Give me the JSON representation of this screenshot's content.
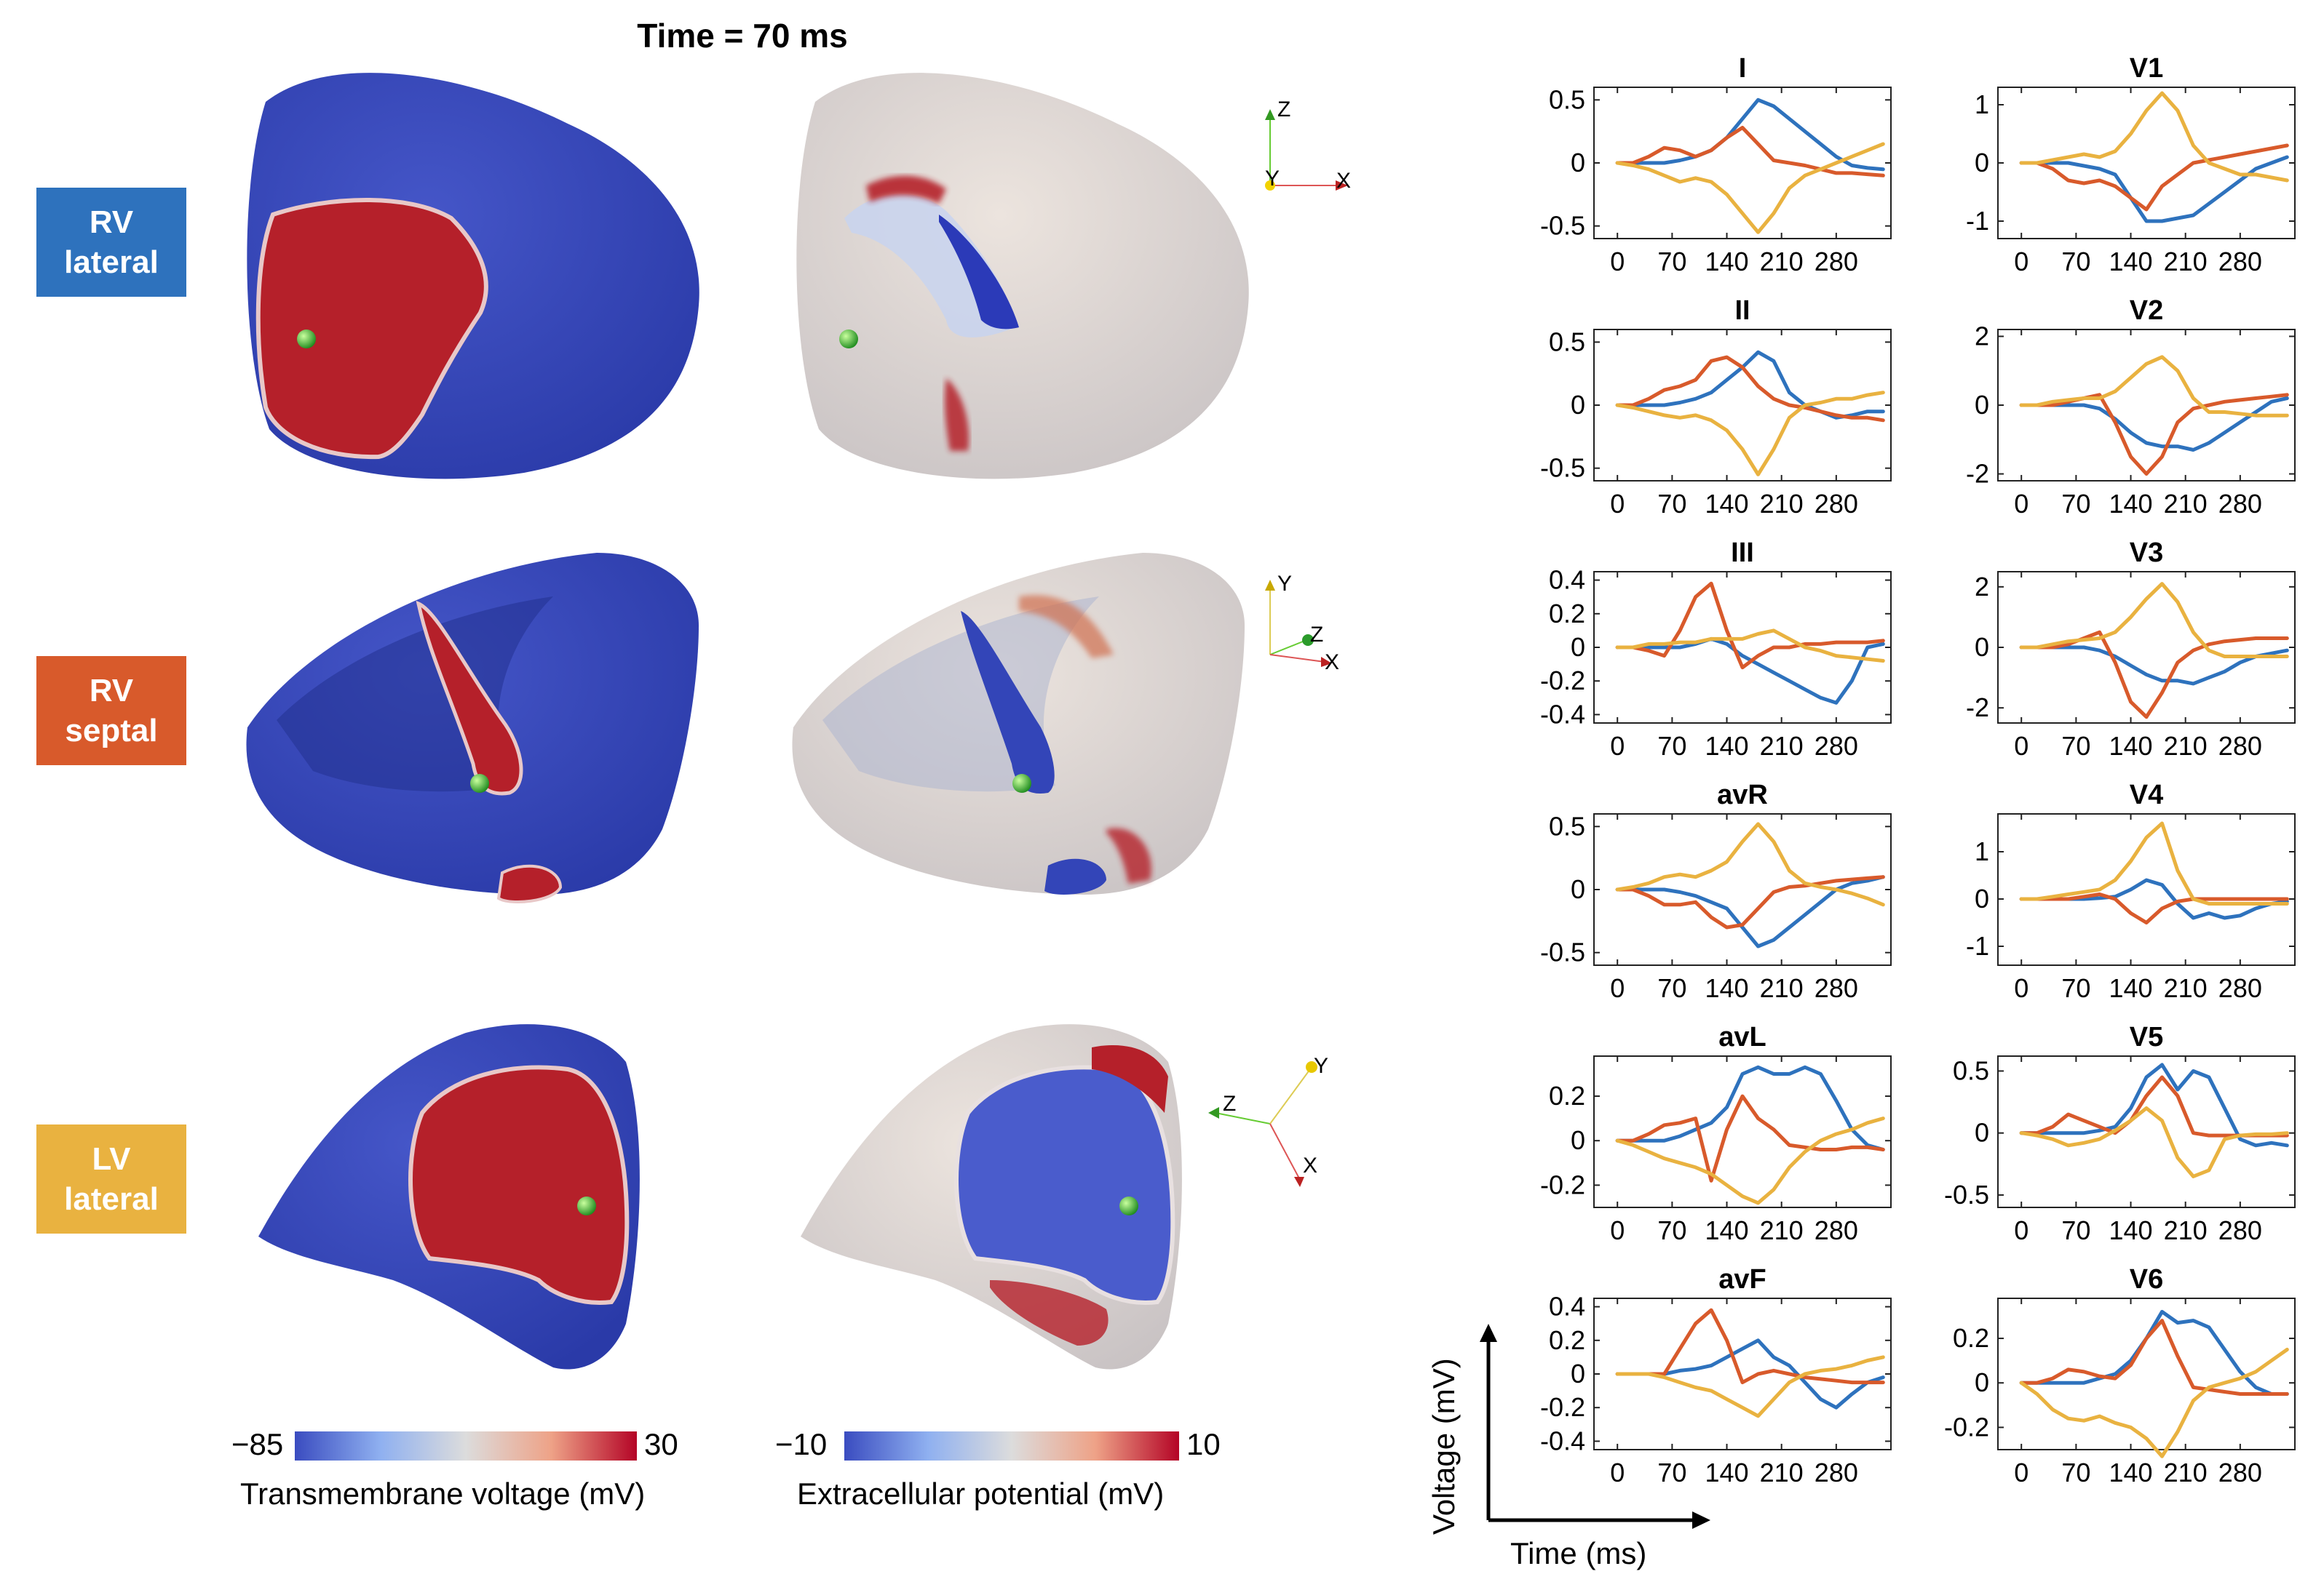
{
  "figure": {
    "time_label": "Time = 70 ms",
    "cases": [
      {
        "line1": "RV",
        "line2": "lateral",
        "color": "#2E72BD"
      },
      {
        "line1": "RV",
        "line2": "septal",
        "color": "#D85A2B"
      },
      {
        "line1": "LV",
        "line2": "lateral",
        "color": "#E9B240"
      }
    ],
    "colorbars": [
      {
        "min_label": "−85",
        "max_label": "30",
        "title": "Transmembrane voltage (mV)"
      },
      {
        "min_label": "−10",
        "max_label": "10",
        "title": "Extracellular potential (mV)"
      }
    ],
    "axes_triads": [
      {
        "labels": [
          "Z",
          "Y",
          "X"
        ]
      },
      {
        "labels": [
          "Y",
          "Z",
          "X"
        ]
      },
      {
        "labels": [
          "Z",
          "Y",
          "X"
        ]
      }
    ],
    "guide": {
      "ylabel": "Voltage (mV)",
      "xlabel": "Time (ms)"
    }
  },
  "chart_data": {
    "type": "line",
    "x_ticks": [
      0,
      70,
      140,
      210,
      280
    ],
    "xlim": [
      -30,
      350
    ],
    "series_colors": [
      "#2E72BD",
      "#D85A2B",
      "#E9B240"
    ],
    "x": [
      0,
      20,
      40,
      60,
      80,
      100,
      120,
      140,
      160,
      180,
      200,
      220,
      240,
      260,
      280,
      300,
      320,
      340
    ],
    "leads": [
      {
        "title": "I",
        "ylim": [
          -0.6,
          0.6
        ],
        "yticks": [
          -0.5,
          0,
          0.5
        ],
        "ytick_labels": [
          "-0.5",
          "0",
          "0.5"
        ],
        "series": [
          [
            0,
            0,
            0,
            0,
            0.02,
            0.05,
            0.1,
            0.2,
            0.35,
            0.5,
            0.45,
            0.35,
            0.25,
            0.15,
            0.05,
            -0.02,
            -0.04,
            -0.05
          ],
          [
            0,
            0,
            0.05,
            0.12,
            0.1,
            0.05,
            0.1,
            0.2,
            0.28,
            0.15,
            0.02,
            0,
            -0.02,
            -0.05,
            -0.08,
            -0.08,
            -0.09,
            -0.1
          ],
          [
            0,
            -0.02,
            -0.05,
            -0.1,
            -0.15,
            -0.12,
            -0.15,
            -0.25,
            -0.4,
            -0.55,
            -0.4,
            -0.2,
            -0.1,
            -0.05,
            0,
            0.05,
            0.1,
            0.15
          ]
        ]
      },
      {
        "title": "V1",
        "ylim": [
          -1.3,
          1.3
        ],
        "yticks": [
          -1,
          0,
          1
        ],
        "ytick_labels": [
          "-1",
          "0",
          "1"
        ],
        "series": [
          [
            0,
            0,
            0,
            0,
            -0.05,
            -0.1,
            -0.2,
            -0.6,
            -1.0,
            -1.0,
            -0.95,
            -0.9,
            -0.7,
            -0.5,
            -0.3,
            -0.1,
            0,
            0.1
          ],
          [
            0,
            0,
            -0.1,
            -0.3,
            -0.35,
            -0.3,
            -0.4,
            -0.6,
            -0.8,
            -0.4,
            -0.2,
            0,
            0.05,
            0.1,
            0.15,
            0.2,
            0.25,
            0.3
          ],
          [
            0,
            0,
            0.05,
            0.1,
            0.15,
            0.1,
            0.2,
            0.5,
            0.9,
            1.2,
            0.9,
            0.3,
            0,
            -0.1,
            -0.2,
            -0.2,
            -0.25,
            -0.3
          ]
        ]
      },
      {
        "title": "II",
        "ylim": [
          -0.6,
          0.6
        ],
        "yticks": [
          -0.5,
          0,
          0.5
        ],
        "ytick_labels": [
          "-0.5",
          "0",
          "0.5"
        ],
        "series": [
          [
            0,
            0,
            0,
            0,
            0.02,
            0.05,
            0.1,
            0.2,
            0.3,
            0.42,
            0.35,
            0.1,
            0,
            -0.05,
            -0.1,
            -0.08,
            -0.05,
            -0.05
          ],
          [
            0,
            0,
            0.05,
            0.12,
            0.15,
            0.2,
            0.35,
            0.38,
            0.3,
            0.15,
            0.05,
            0,
            -0.02,
            -0.05,
            -0.08,
            -0.1,
            -0.1,
            -0.12
          ],
          [
            0,
            -0.02,
            -0.05,
            -0.08,
            -0.1,
            -0.08,
            -0.12,
            -0.2,
            -0.35,
            -0.55,
            -0.35,
            -0.1,
            0,
            0.02,
            0.05,
            0.05,
            0.08,
            0.1
          ]
        ]
      },
      {
        "title": "V2",
        "ylim": [
          -2.2,
          2.2
        ],
        "yticks": [
          -2,
          0,
          2
        ],
        "ytick_labels": [
          "-2",
          "0",
          "2"
        ],
        "series": [
          [
            0,
            0,
            0,
            0,
            0,
            -0.1,
            -0.4,
            -0.8,
            -1.1,
            -1.2,
            -1.2,
            -1.3,
            -1.1,
            -0.8,
            -0.5,
            -0.2,
            0.1,
            0.2
          ],
          [
            0,
            0,
            0,
            0.1,
            0.2,
            0.3,
            -0.5,
            -1.5,
            -2.0,
            -1.5,
            -0.5,
            -0.1,
            0,
            0.1,
            0.15,
            0.2,
            0.25,
            0.3
          ],
          [
            0,
            0,
            0.1,
            0.15,
            0.2,
            0.2,
            0.4,
            0.8,
            1.2,
            1.4,
            1.0,
            0.2,
            -0.2,
            -0.2,
            -0.25,
            -0.3,
            -0.3,
            -0.3
          ]
        ]
      },
      {
        "title": "III",
        "ylim": [
          -0.45,
          0.45
        ],
        "yticks": [
          -0.4,
          -0.2,
          0,
          0.2,
          0.4
        ],
        "ytick_labels": [
          "-0.4",
          "-0.2",
          "0",
          "0.2",
          "0.4"
        ],
        "series": [
          [
            0,
            0,
            0,
            0,
            0,
            0.02,
            0.05,
            0.02,
            -0.05,
            -0.1,
            -0.15,
            -0.2,
            -0.25,
            -0.3,
            -0.33,
            -0.2,
            0,
            0.02
          ],
          [
            0,
            0,
            -0.02,
            -0.05,
            0.1,
            0.3,
            0.38,
            0.1,
            -0.12,
            -0.05,
            0,
            0,
            0.02,
            0.02,
            0.03,
            0.03,
            0.03,
            0.04
          ],
          [
            0,
            0,
            0.02,
            0.02,
            0.03,
            0.03,
            0.05,
            0.05,
            0.05,
            0.08,
            0.1,
            0.05,
            0,
            -0.02,
            -0.05,
            -0.06,
            -0.07,
            -0.08
          ]
        ]
      },
      {
        "title": "V3",
        "ylim": [
          -2.5,
          2.5
        ],
        "yticks": [
          -2,
          0,
          2
        ],
        "ytick_labels": [
          "-2",
          "0",
          "2"
        ],
        "series": [
          [
            0,
            0,
            0,
            0,
            0,
            -0.1,
            -0.3,
            -0.6,
            -0.9,
            -1.1,
            -1.1,
            -1.2,
            -1.0,
            -0.8,
            -0.5,
            -0.3,
            -0.2,
            -0.1
          ],
          [
            0,
            0,
            0,
            0.1,
            0.3,
            0.5,
            -0.5,
            -1.8,
            -2.3,
            -1.5,
            -0.5,
            -0.1,
            0.1,
            0.2,
            0.25,
            0.3,
            0.3,
            0.3
          ],
          [
            0,
            0,
            0.1,
            0.2,
            0.25,
            0.3,
            0.5,
            1.0,
            1.6,
            2.1,
            1.5,
            0.5,
            -0.1,
            -0.3,
            -0.3,
            -0.3,
            -0.3,
            -0.3
          ]
        ]
      },
      {
        "title": "avR",
        "ylim": [
          -0.6,
          0.6
        ],
        "yticks": [
          -0.5,
          0,
          0.5
        ],
        "ytick_labels": [
          "-0.5",
          "0",
          "0.5"
        ],
        "series": [
          [
            0,
            0,
            0,
            0,
            -0.02,
            -0.05,
            -0.1,
            -0.15,
            -0.3,
            -0.45,
            -0.4,
            -0.3,
            -0.2,
            -0.1,
            0,
            0.05,
            0.07,
            0.1
          ],
          [
            0,
            0,
            -0.05,
            -0.12,
            -0.12,
            -0.1,
            -0.22,
            -0.3,
            -0.28,
            -0.15,
            -0.02,
            0.02,
            0.03,
            0.05,
            0.07,
            0.08,
            0.09,
            0.1
          ],
          [
            0,
            0.02,
            0.05,
            0.1,
            0.12,
            0.1,
            0.15,
            0.22,
            0.38,
            0.52,
            0.38,
            0.15,
            0.05,
            0.02,
            0,
            -0.03,
            -0.07,
            -0.12
          ]
        ]
      },
      {
        "title": "V4",
        "ylim": [
          -1.4,
          1.8
        ],
        "yticks": [
          -1,
          0,
          1
        ],
        "ytick_labels": [
          "-1",
          "0",
          "1"
        ],
        "series": [
          [
            0,
            0,
            0,
            0,
            0,
            0.02,
            0.05,
            0.2,
            0.4,
            0.3,
            -0.1,
            -0.4,
            -0.3,
            -0.4,
            -0.35,
            -0.2,
            -0.1,
            -0.05
          ],
          [
            0,
            0,
            0,
            0,
            0.05,
            0.1,
            0,
            -0.3,
            -0.5,
            -0.2,
            -0.05,
            0,
            0,
            0,
            0,
            0,
            0,
            0
          ],
          [
            0,
            0,
            0.05,
            0.1,
            0.15,
            0.2,
            0.4,
            0.8,
            1.3,
            1.6,
            0.6,
            0,
            -0.1,
            -0.1,
            -0.1,
            -0.1,
            -0.1,
            -0.1
          ]
        ]
      },
      {
        "title": "avL",
        "ylim": [
          -0.3,
          0.38
        ],
        "yticks": [
          -0.2,
          0,
          0.2
        ],
        "ytick_labels": [
          "-0.2",
          "0",
          "0.2"
        ],
        "series": [
          [
            0,
            0,
            0,
            0,
            0.02,
            0.05,
            0.08,
            0.15,
            0.3,
            0.33,
            0.3,
            0.3,
            0.33,
            0.3,
            0.18,
            0.05,
            -0.02,
            -0.04
          ],
          [
            0,
            0,
            0.03,
            0.07,
            0.08,
            0.1,
            -0.18,
            0.05,
            0.2,
            0.1,
            0.05,
            -0.02,
            -0.03,
            -0.04,
            -0.04,
            -0.03,
            -0.03,
            -0.04
          ],
          [
            0,
            -0.02,
            -0.05,
            -0.08,
            -0.1,
            -0.12,
            -0.15,
            -0.2,
            -0.25,
            -0.28,
            -0.22,
            -0.12,
            -0.05,
            0,
            0.03,
            0.05,
            0.08,
            0.1
          ]
        ]
      },
      {
        "title": "V5",
        "ylim": [
          -0.6,
          0.62
        ],
        "yticks": [
          -0.5,
          0,
          0.5
        ],
        "ytick_labels": [
          "-0.5",
          "0",
          "0.5"
        ],
        "series": [
          [
            0,
            0,
            0,
            0,
            0,
            0.02,
            0.05,
            0.2,
            0.45,
            0.55,
            0.35,
            0.5,
            0.45,
            0.2,
            -0.05,
            -0.1,
            -0.08,
            -0.1
          ],
          [
            0,
            0,
            0.05,
            0.15,
            0.1,
            0.05,
            0,
            0.1,
            0.3,
            0.45,
            0.3,
            0,
            -0.02,
            -0.02,
            -0.02,
            -0.02,
            -0.02,
            -0.02
          ],
          [
            0,
            -0.02,
            -0.05,
            -0.1,
            -0.08,
            -0.05,
            0.02,
            0.1,
            0.2,
            0.1,
            -0.2,
            -0.35,
            -0.3,
            -0.05,
            -0.02,
            -0.01,
            -0.01,
            0
          ]
        ]
      },
      {
        "title": "avF",
        "ylim": [
          -0.45,
          0.45
        ],
        "yticks": [
          -0.4,
          -0.2,
          0,
          0.2,
          0.4
        ],
        "ytick_labels": [
          "-0.4",
          "-0.2",
          "0",
          "0.2",
          "0.4"
        ],
        "series": [
          [
            0,
            0,
            0,
            0,
            0.02,
            0.03,
            0.05,
            0.1,
            0.15,
            0.2,
            0.1,
            0.05,
            -0.05,
            -0.15,
            -0.2,
            -0.12,
            -0.05,
            -0.02
          ],
          [
            0,
            0,
            0,
            0,
            0.15,
            0.3,
            0.38,
            0.2,
            -0.05,
            0,
            0.02,
            0,
            -0.02,
            -0.03,
            -0.04,
            -0.05,
            -0.05,
            -0.05
          ],
          [
            0,
            0,
            0,
            -0.02,
            -0.05,
            -0.08,
            -0.1,
            -0.15,
            -0.2,
            -0.25,
            -0.15,
            -0.05,
            0,
            0.02,
            0.03,
            0.05,
            0.08,
            0.1
          ]
        ]
      },
      {
        "title": "V6",
        "ylim": [
          -0.3,
          0.38
        ],
        "yticks": [
          -0.2,
          0,
          0.2
        ],
        "ytick_labels": [
          "-0.2",
          "0",
          "0.2"
        ],
        "series": [
          [
            0,
            0,
            0,
            0,
            0,
            0.02,
            0.04,
            0.1,
            0.2,
            0.32,
            0.27,
            0.28,
            0.25,
            0.15,
            0.05,
            -0.02,
            -0.05,
            -0.05
          ],
          [
            0,
            0,
            0.02,
            0.06,
            0.05,
            0.03,
            0.02,
            0.08,
            0.2,
            0.28,
            0.12,
            -0.02,
            -0.03,
            -0.04,
            -0.05,
            -0.05,
            -0.05,
            -0.05
          ],
          [
            0,
            -0.05,
            -0.12,
            -0.16,
            -0.17,
            -0.15,
            -0.18,
            -0.2,
            -0.25,
            -0.33,
            -0.22,
            -0.08,
            -0.02,
            0,
            0.02,
            0.05,
            0.1,
            0.15
          ]
        ]
      }
    ]
  }
}
